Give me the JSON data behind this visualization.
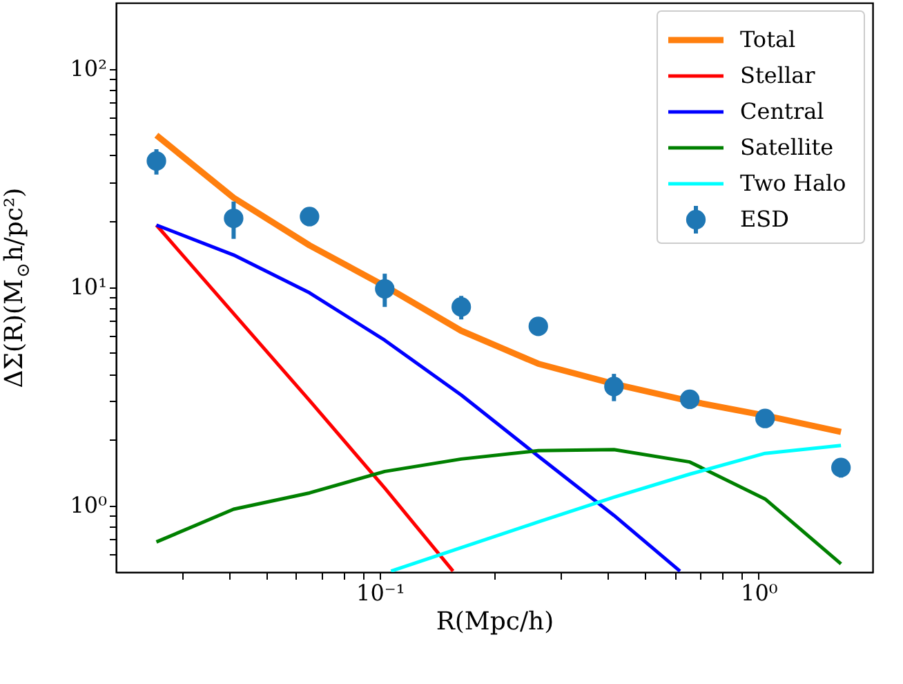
{
  "chart_data": {
    "type": "line",
    "xlabel": "R(Mpc/h)",
    "ylabel": "ΔΣ(R)(M$_{⊙}$h/pc²)",
    "log": "xy",
    "grid": false,
    "legend": "top right",
    "x": [
      0.0257,
      0.0411,
      0.0652,
      0.103,
      0.164,
      0.262,
      0.415,
      0.658,
      1.04,
      1.65
    ],
    "xlim": [
      0.0201,
      2.0
    ],
    "ylim": [
      0.495,
      200
    ],
    "xticks": [
      {
        "value": 0.03,
        "label": null
      },
      {
        "value": 0.04,
        "label": null
      },
      {
        "value": 0.05,
        "label": null
      },
      {
        "value": 0.06,
        "label": null
      },
      {
        "value": 0.07,
        "label": null
      },
      {
        "value": 0.08,
        "label": null
      },
      {
        "value": 0.09,
        "label": null
      },
      {
        "value": 0.1,
        "label": "10⁻¹"
      },
      {
        "value": 0.2,
        "label": null
      },
      {
        "value": 0.3,
        "label": null
      },
      {
        "value": 0.4,
        "label": null
      },
      {
        "value": 0.5,
        "label": null
      },
      {
        "value": 0.6,
        "label": null
      },
      {
        "value": 0.7,
        "label": null
      },
      {
        "value": 0.8,
        "label": null
      },
      {
        "value": 0.9,
        "label": null
      },
      {
        "value": 1,
        "label": "10⁰"
      }
    ],
    "yticks": [
      {
        "value": 0.6,
        "label": null
      },
      {
        "value": 0.7,
        "label": null
      },
      {
        "value": 0.8,
        "label": null
      },
      {
        "value": 0.9,
        "label": null
      },
      {
        "value": 1,
        "label": "10⁰"
      },
      {
        "value": 2,
        "label": null
      },
      {
        "value": 3,
        "label": null
      },
      {
        "value": 4,
        "label": null
      },
      {
        "value": 5,
        "label": null
      },
      {
        "value": 6,
        "label": null
      },
      {
        "value": 7,
        "label": null
      },
      {
        "value": 8,
        "label": null
      },
      {
        "value": 9,
        "label": null
      },
      {
        "value": 10,
        "label": "10¹"
      },
      {
        "value": 20,
        "label": null
      },
      {
        "value": 30,
        "label": null
      },
      {
        "value": 40,
        "label": null
      },
      {
        "value": 50,
        "label": null
      },
      {
        "value": 60,
        "label": null
      },
      {
        "value": 70,
        "label": null
      },
      {
        "value": 80,
        "label": null
      },
      {
        "value": 90,
        "label": null
      },
      {
        "value": 100,
        "label": "10²"
      }
    ],
    "series": [
      {
        "name": "Total",
        "color": "#ff7f0e",
        "values": [
          49.5,
          25.6,
          15.5,
          10.1,
          6.3,
          4.45,
          3.6,
          3.0,
          2.58,
          2.17
        ]
      },
      {
        "name": "Stellar",
        "color": "#ff0000",
        "x": [
          0.0257,
          0.0411,
          0.0652,
          0.103,
          0.156
        ],
        "values": [
          19.2,
          7.55,
          3.02,
          1.2,
          0.5
        ]
      },
      {
        "name": "Central",
        "color": "#0000ff",
        "x": [
          0.0257,
          0.0411,
          0.0652,
          0.103,
          0.164,
          0.262,
          0.415,
          0.62
        ],
        "values": [
          19.2,
          14,
          9.4,
          5.7,
          3.2,
          1.68,
          0.9,
          0.5
        ]
      },
      {
        "name": "Satellite",
        "color": "#008000",
        "values": [
          0.68,
          0.96,
          1.14,
          1.43,
          1.63,
          1.78,
          1.8,
          1.58,
          1.07,
          0.54
        ]
      },
      {
        "name": "Two Halo",
        "color": "#00ffff",
        "x": [
          0.107,
          0.164,
          0.262,
          0.415,
          0.658,
          1.04,
          1.65
        ],
        "values": [
          0.5,
          0.64,
          0.84,
          1.09,
          1.39,
          1.73,
          1.88
        ]
      },
      {
        "name": "ESD",
        "type": "scatter",
        "color": "#1f77b4",
        "marker": "circle",
        "values": [
          37.7,
          20.6,
          21,
          9.8,
          8.1,
          6.6,
          3.5,
          3.06,
          2.5,
          1.49
        ],
        "errors": [
          5,
          4,
          2,
          1.7,
          1,
          0.5,
          0.5,
          0.3,
          0.2,
          0.15
        ]
      }
    ]
  }
}
